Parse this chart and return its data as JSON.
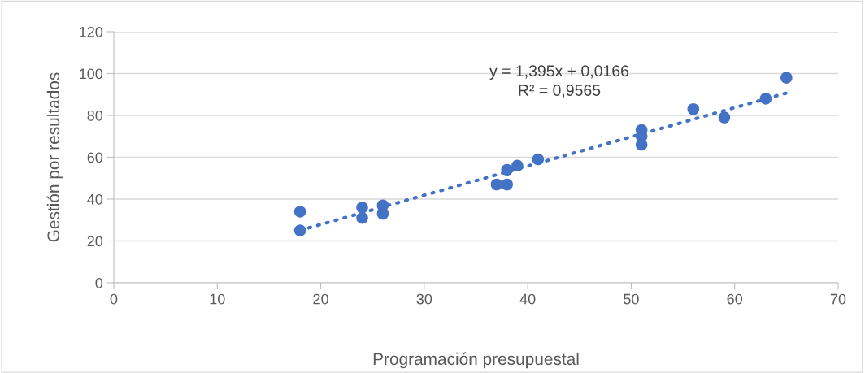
{
  "chart_data": {
    "type": "scatter",
    "xlabel": "Programación presupuestal",
    "ylabel": "Gestión por resultados",
    "xlim": [
      0,
      70
    ],
    "xticks": [
      0,
      10,
      20,
      30,
      40,
      50,
      60,
      70
    ],
    "ylim": [
      0,
      120
    ],
    "yticks": [
      0,
      20,
      40,
      60,
      80,
      100,
      120
    ],
    "grid": "y",
    "series": [
      {
        "color": "#4472c4",
        "marker": "circle",
        "x": [
          18,
          18,
          24,
          24,
          26,
          26,
          37,
          38,
          38,
          39,
          41,
          51,
          51,
          51,
          56,
          59,
          63,
          65
        ],
        "values": [
          34,
          25,
          36,
          31,
          37,
          33,
          47,
          47,
          54,
          56,
          59,
          73,
          70,
          66,
          83,
          79,
          88,
          98
        ]
      },
      {
        "type": "line",
        "color": "#4472c4",
        "line_style": "dotted",
        "x": [
          18,
          65
        ],
        "values": [
          25.1,
          90.7
        ]
      }
    ],
    "annotations": [
      "y = 1,395x + 0,0166\nR² = 0,9565"
    ]
  }
}
